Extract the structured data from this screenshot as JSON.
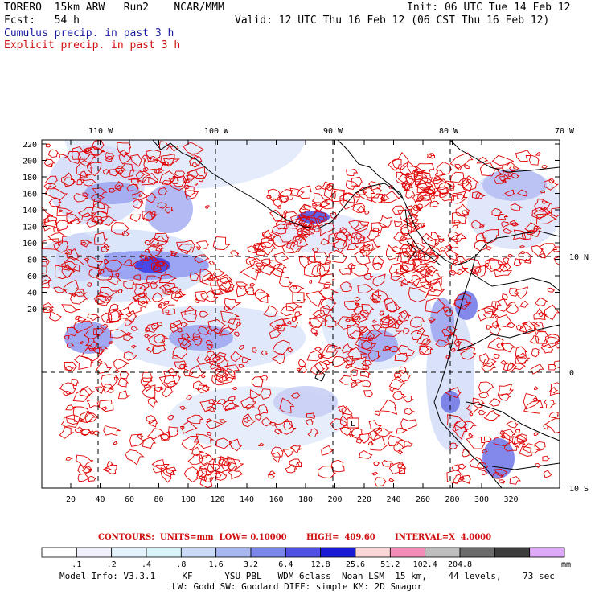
{
  "header": {
    "line1_left": "TORERO  15km ARW   Run2    NCAR/MMM",
    "line1_right": "Init: 06 UTC Tue 14 Feb 12",
    "line2_left": "Fcst:   54 h",
    "line2_right": "Valid: 12 UTC Thu 16 Feb 12 (06 CST Thu 16 Feb 12)",
    "line3": "Cumulus precip. in past 3 h",
    "line4": "Explicit precip. in past 3 h"
  },
  "map": {
    "lon_labels": [
      "110 W",
      "100 W",
      "90 W",
      "80 W",
      "70 W"
    ],
    "lat_labels": [
      "10 N",
      "0",
      "10 S"
    ],
    "y_ticks": [
      "220",
      "200",
      "180",
      "160",
      "140",
      "120",
      "100",
      "80",
      "60",
      "40",
      "20"
    ],
    "x_ticks": [
      "20",
      "40",
      "60",
      "80",
      "100",
      "120",
      "140",
      "160",
      "180",
      "200",
      "220",
      "240",
      "260",
      "280",
      "300",
      "320"
    ],
    "high_low_markers": [
      "L",
      "L"
    ],
    "colors": {
      "cumulus": "#3a3aee",
      "explicit": "#e00000",
      "coast": "#000000"
    }
  },
  "contour_info": {
    "text": "CONTOURS:  UNITS=mm  LOW= 0.10000       HIGH=  409.60       INTERVAL=X  4.0000"
  },
  "colorbar": {
    "labels": [
      ".1",
      ".2",
      ".4",
      ".8",
      "1.6",
      "3.2",
      "6.4",
      "12.8",
      "25.6",
      "51.2",
      "102.4",
      "204.8"
    ],
    "unit": "mm",
    "colors": [
      "#ffffff",
      "#f0f0fa",
      "#e4f2fc",
      "#d8f4f8",
      "#cad9f6",
      "#a8b6f0",
      "#7c85ea",
      "#5050e4",
      "#1a1ad6",
      "#fbd6d6",
      "#f58cb8",
      "#bebebe",
      "#6b6b6b",
      "#3c3c3c",
      "#dcaaf6"
    ]
  },
  "footer": {
    "line1": "Model Info: V3.3.1     KF      YSU PBL   WDM 6class  Noah LSM  15 km,    44 levels,    73 sec",
    "line2": "LW: Godd SW: Goddard DIFF: simple KM: 2D Smagor"
  }
}
